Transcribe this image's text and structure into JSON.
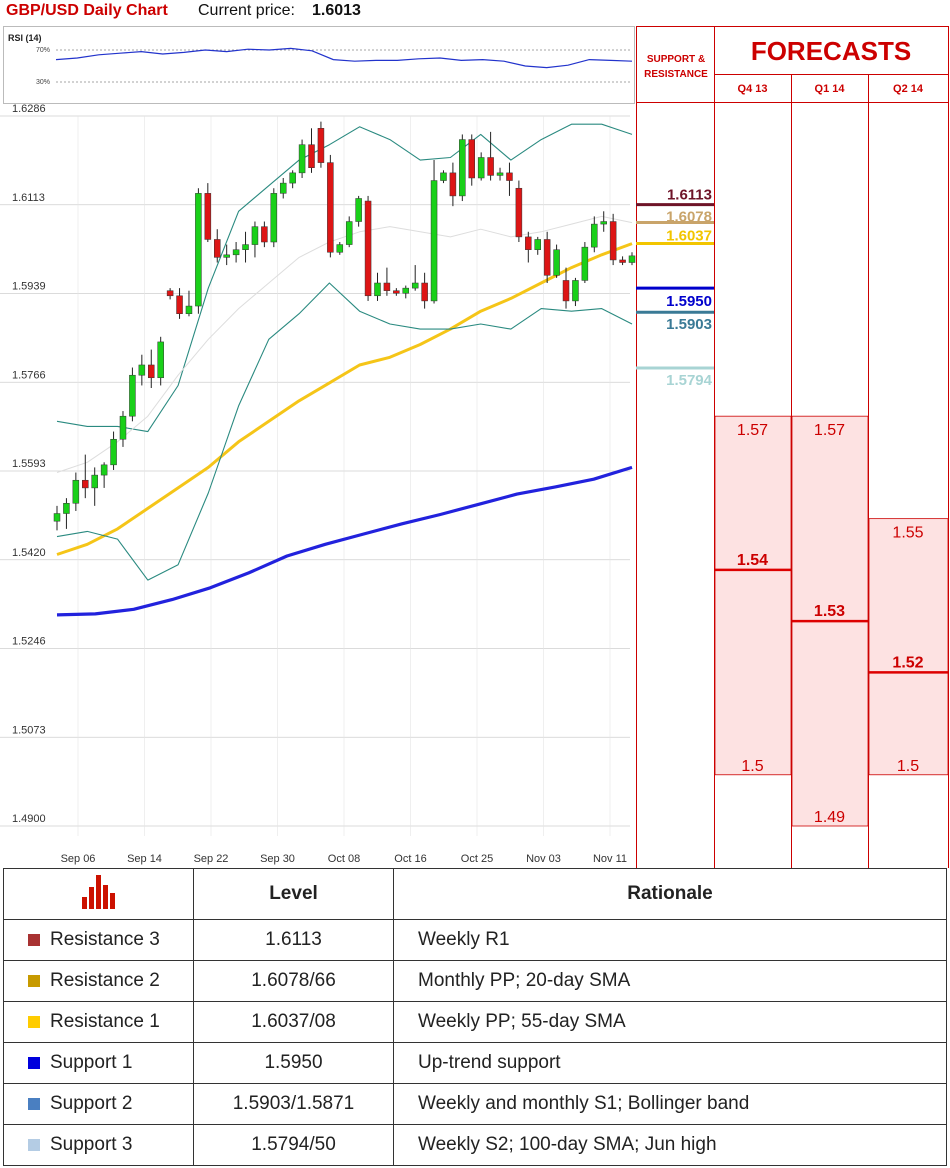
{
  "header": {
    "title": "GBP/USD Daily Chart",
    "price_label": "Current price:",
    "price_value": "1.6013"
  },
  "rsi": {
    "label": "RSI (14)",
    "levels": [
      "70%",
      "30%"
    ]
  },
  "sr_panel": {
    "title_line1": "SUPPORT &",
    "title_line2": "RESISTANCE"
  },
  "forecasts": {
    "title": "FORECASTS",
    "quarters": [
      {
        "label": "Q4 13",
        "high": "1.57",
        "mid": "1.54",
        "low": "1.5",
        "high_v": 1.57,
        "mid_v": 1.54,
        "low_v": 1.5
      },
      {
        "label": "Q1 14",
        "high": "1.57",
        "mid": "1.53",
        "low": "1.49",
        "high_v": 1.57,
        "mid_v": 1.53,
        "low_v": 1.49
      },
      {
        "label": "Q2 14",
        "high": "1.55",
        "mid": "1.52",
        "low": "1.5",
        "high_v": 1.55,
        "mid_v": 1.52,
        "low_v": 1.5
      }
    ]
  },
  "levels": [
    {
      "label": "1.6113",
      "value": 1.6113,
      "color": "#6e1428"
    },
    {
      "label": "1.6078",
      "value": 1.6078,
      "color": "#c9a46a"
    },
    {
      "label": "1.6037",
      "value": 1.6037,
      "color": "#f2c500"
    },
    {
      "label": "1.5950",
      "value": 1.595,
      "color": "#0000cc"
    },
    {
      "label": "1.5903",
      "value": 1.5903,
      "color": "#3a7a96"
    },
    {
      "label": "1.5794",
      "value": 1.5794,
      "color": "#a8d4d4"
    }
  ],
  "chart_data": {
    "type": "candlestick",
    "title": "GBP/USD Daily Chart",
    "x_ticks": [
      "Sep 06",
      "Sep 14",
      "Sep 22",
      "Sep 30",
      "Oct 08",
      "Oct 16",
      "Oct 25",
      "Nov 03",
      "Nov 11"
    ],
    "y_ticks": [
      "1.6286",
      "1.6113",
      "1.5939",
      "1.5766",
      "1.5593",
      "1.5420",
      "1.5246",
      "1.5073",
      "1.4900"
    ],
    "ylim": [
      1.49,
      1.6286
    ],
    "candles": [
      [
        1.5495,
        1.5525,
        1.5477,
        1.551
      ],
      [
        1.551,
        1.554,
        1.548,
        1.553
      ],
      [
        1.553,
        1.559,
        1.5515,
        1.5575
      ],
      [
        1.5575,
        1.5625,
        1.554,
        1.556
      ],
      [
        1.556,
        1.56,
        1.5525,
        1.5585
      ],
      [
        1.5585,
        1.561,
        1.556,
        1.5605
      ],
      [
        1.5605,
        1.567,
        1.5595,
        1.5655
      ],
      [
        1.5655,
        1.571,
        1.564,
        1.57
      ],
      [
        1.57,
        1.5795,
        1.569,
        1.578
      ],
      [
        1.578,
        1.582,
        1.576,
        1.58
      ],
      [
        1.58,
        1.583,
        1.5755,
        1.5775
      ],
      [
        1.5775,
        1.5855,
        1.576,
        1.5845
      ],
      [
        1.5945,
        1.595,
        1.5928,
        1.5935
      ],
      [
        1.5935,
        1.595,
        1.589,
        1.59
      ],
      [
        1.59,
        1.5945,
        1.5895,
        1.5915
      ],
      [
        1.5915,
        1.6145,
        1.59,
        1.6135
      ],
      [
        1.6135,
        1.6155,
        1.604,
        1.6045
      ],
      [
        1.6045,
        1.6065,
        1.6,
        1.601
      ],
      [
        1.601,
        1.6035,
        1.5995,
        1.6015
      ],
      [
        1.6015,
        1.604,
        1.6,
        1.6025
      ],
      [
        1.6025,
        1.606,
        1.6,
        1.6035
      ],
      [
        1.6035,
        1.608,
        1.601,
        1.607
      ],
      [
        1.607,
        1.608,
        1.603,
        1.604
      ],
      [
        1.604,
        1.6145,
        1.603,
        1.6135
      ],
      [
        1.6135,
        1.6165,
        1.6125,
        1.6155
      ],
      [
        1.6155,
        1.618,
        1.6145,
        1.6175
      ],
      [
        1.6175,
        1.624,
        1.6165,
        1.623
      ],
      [
        1.623,
        1.6262,
        1.6175,
        1.6185
      ],
      [
        1.6262,
        1.6275,
        1.6185,
        1.6195
      ],
      [
        1.6195,
        1.621,
        1.601,
        1.602
      ],
      [
        1.602,
        1.604,
        1.6015,
        1.6035
      ],
      [
        1.6035,
        1.609,
        1.603,
        1.608
      ],
      [
        1.608,
        1.613,
        1.607,
        1.6125
      ],
      [
        1.612,
        1.613,
        1.5925,
        1.5935
      ],
      [
        1.5935,
        1.598,
        1.5925,
        1.596
      ],
      [
        1.596,
        1.599,
        1.5935,
        1.5945
      ],
      [
        1.5945,
        1.595,
        1.5935,
        1.594
      ],
      [
        1.594,
        1.5955,
        1.593,
        1.595
      ],
      [
        1.595,
        1.5995,
        1.5945,
        1.596
      ],
      [
        1.596,
        1.598,
        1.591,
        1.5925
      ],
      [
        1.5925,
        1.62,
        1.592,
        1.616
      ],
      [
        1.616,
        1.618,
        1.6155,
        1.6175
      ],
      [
        1.6175,
        1.6195,
        1.611,
        1.613
      ],
      [
        1.613,
        1.625,
        1.612,
        1.624
      ],
      [
        1.624,
        1.625,
        1.615,
        1.6165
      ],
      [
        1.6165,
        1.6215,
        1.616,
        1.6205
      ],
      [
        1.6205,
        1.6255,
        1.616,
        1.617
      ],
      [
        1.617,
        1.6185,
        1.616,
        1.6175
      ],
      [
        1.6175,
        1.6195,
        1.613,
        1.616
      ],
      [
        1.6145,
        1.616,
        1.604,
        1.605
      ],
      [
        1.605,
        1.606,
        1.6,
        1.6025
      ],
      [
        1.6025,
        1.605,
        1.6015,
        1.6045
      ],
      [
        1.6045,
        1.606,
        1.596,
        1.5975
      ],
      [
        1.5975,
        1.6035,
        1.597,
        1.6025
      ],
      [
        1.5965,
        1.599,
        1.591,
        1.5925
      ],
      [
        1.5925,
        1.597,
        1.5915,
        1.5965
      ],
      [
        1.5965,
        1.604,
        1.596,
        1.603
      ],
      [
        1.603,
        1.609,
        1.602,
        1.6075
      ],
      [
        1.6075,
        1.61,
        1.606,
        1.608
      ],
      [
        1.608,
        1.6095,
        1.5995,
        1.6005
      ],
      [
        1.6005,
        1.6012,
        1.5995,
        1.6
      ],
      [
        1.6,
        1.602,
        1.5995,
        1.6013
      ]
    ],
    "series": [
      {
        "color": "#f5c518",
        "values": [
          1.543,
          1.545,
          1.548,
          1.552,
          1.556,
          1.56,
          1.565,
          1.569,
          1.573,
          1.5765,
          1.58,
          1.5815,
          1.584,
          1.587,
          1.5905,
          1.593,
          1.596,
          1.599,
          1.6015,
          1.6037
        ]
      },
      {
        "color": "#2222dd",
        "values": [
          1.5312,
          1.5314,
          1.5323,
          1.5342,
          1.5365,
          1.5394,
          1.5427,
          1.545,
          1.547,
          1.549,
          1.5508,
          1.5528,
          1.5548,
          1.5562,
          1.5577,
          1.56
        ]
      },
      {
        "color": "#2a8a80",
        "values": [
          1.569,
          1.568,
          1.568,
          1.567,
          1.576,
          1.595,
          1.61,
          1.615,
          1.62,
          1.623,
          1.6265,
          1.624,
          1.62,
          1.6205,
          1.625,
          1.62,
          1.624,
          1.627,
          1.627,
          1.625
        ]
      },
      {
        "color": "#2a8a80",
        "values": [
          1.5465,
          1.5475,
          1.546,
          1.538,
          1.541,
          1.555,
          1.572,
          1.585,
          1.59,
          1.596,
          1.5905,
          1.588,
          1.587,
          1.587,
          1.588,
          1.587,
          1.591,
          1.5905,
          1.591,
          1.588
        ]
      },
      {
        "color": "#dddddd",
        "values": [
          1.559,
          1.561,
          1.565,
          1.57,
          1.578,
          1.585,
          1.591,
          1.596,
          1.601,
          1.604,
          1.606,
          1.607,
          1.606,
          1.605,
          1.6065,
          1.605,
          1.606,
          1.6075,
          1.609,
          1.6078
        ]
      }
    ],
    "rsi_values": [
      58,
      60,
      64,
      66,
      68,
      65,
      67,
      70,
      68,
      71,
      70,
      72,
      69,
      58,
      56,
      57,
      57,
      59,
      60,
      57,
      58,
      56,
      50,
      48,
      51,
      58,
      57,
      56
    ]
  },
  "table": {
    "headers": [
      "Level",
      "Rationale"
    ],
    "rows": [
      {
        "name": "Resistance 3",
        "level": "1.6113",
        "rationale": "Weekly R1",
        "color": "#a83232"
      },
      {
        "name": "Resistance 2",
        "level": "1.6078/66",
        "rationale": "Monthly PP; 20-day SMA",
        "color": "#c79a00"
      },
      {
        "name": "Resistance 1",
        "level": "1.6037/08",
        "rationale": "Weekly PP; 55-day SMA",
        "color": "#ffcc00"
      },
      {
        "name": "Support 1",
        "level": "1.5950",
        "rationale": "Up-trend support",
        "color": "#0000dd"
      },
      {
        "name": "Support 2",
        "level": "1.5903/1.5871",
        "rationale": "Weekly and monthly S1; Bollinger band",
        "color": "#4a7fc1"
      },
      {
        "name": "Support 3",
        "level": "1.5794/50",
        "rationale": "Weekly S2; 100-day SMA; Jun high",
        "color": "#b4cce4"
      }
    ]
  }
}
